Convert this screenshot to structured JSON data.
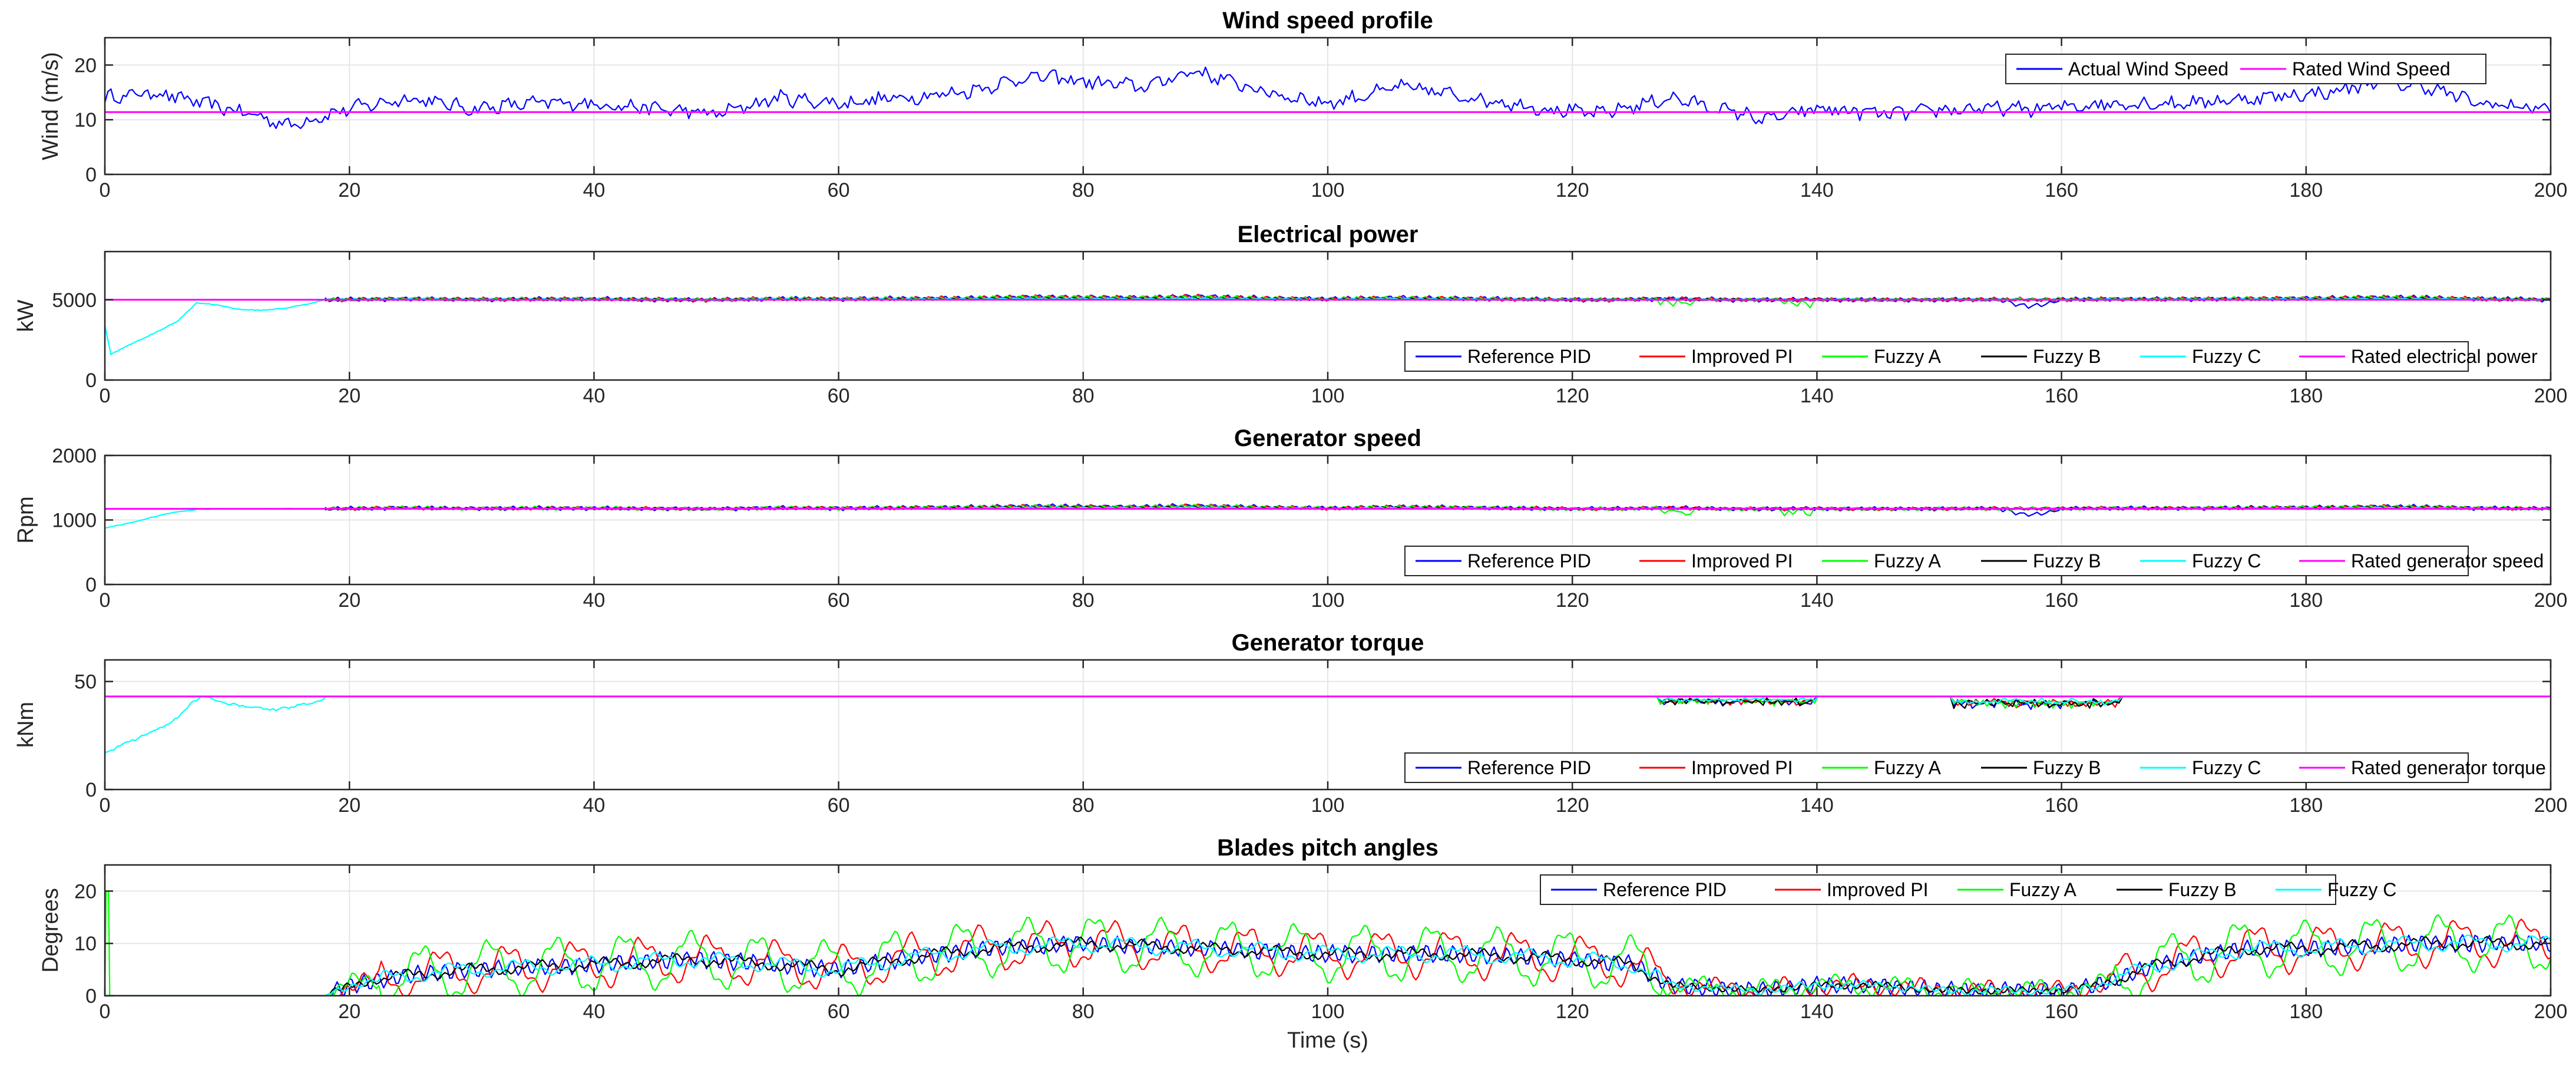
{
  "chart_data": [
    {
      "type": "line",
      "title": "Wind speed profile",
      "ylabel": "Wind (m/s)",
      "xlabel": "",
      "xlim": [
        0,
        200
      ],
      "ylim": [
        0,
        25
      ],
      "yticks": [
        0,
        10,
        20
      ],
      "legend_loc": "top-right",
      "series": [
        {
          "name": "Actual Wind Speed",
          "color": "#0000ff",
          "style": "wind",
          "x": [
            0,
            4,
            8,
            12,
            15,
            20,
            25,
            30,
            35,
            40,
            45,
            50,
            55,
            60,
            65,
            70,
            76,
            80,
            85,
            89,
            95,
            100,
            106,
            112,
            118,
            122,
            128,
            132,
            136,
            140,
            146,
            152,
            158,
            164,
            170,
            176,
            182,
            186,
            190,
            194,
            200
          ],
          "y": [
            14,
            15,
            13,
            11,
            9,
            12,
            14,
            12,
            13,
            13,
            12,
            11,
            14,
            13,
            14,
            15,
            18,
            17,
            16,
            19,
            15,
            13,
            16,
            14,
            12,
            11,
            14,
            12,
            10,
            12,
            11,
            12,
            12,
            13,
            13,
            14,
            15,
            17,
            16,
            13,
            12
          ]
        },
        {
          "name": "Rated Wind Speed",
          "color": "#ff00ff",
          "style": "const",
          "value": 11.4
        }
      ]
    },
    {
      "type": "line",
      "title": "Electrical power",
      "ylabel": "kW",
      "xlabel": "",
      "xlim": [
        0,
        200
      ],
      "ylim": [
        0,
        8000
      ],
      "yticks": [
        0,
        5000
      ],
      "legend_loc": "bottom-right",
      "startup": {
        "x": [
          0,
          0.5,
          2,
          4,
          6,
          7.5,
          9,
          11,
          13,
          15,
          17,
          18
        ],
        "y": [
          3400,
          1600,
          2200,
          2900,
          3700,
          4800,
          4700,
          4400,
          4350,
          4500,
          4800,
          5000
        ]
      },
      "series": [
        {
          "name": "Reference PID",
          "color": "#0000ff",
          "style": "osc",
          "gain": 0.12,
          "amp": 150
        },
        {
          "name": "Improved PI",
          "color": "#ff0000",
          "style": "osc",
          "gain": 0.11,
          "amp": 140
        },
        {
          "name": "Fuzzy A",
          "color": "#00ff00",
          "style": "osc",
          "gain": 0.1,
          "amp": 130
        },
        {
          "name": "Fuzzy B",
          "color": "#000000",
          "style": "osc",
          "gain": 0.06,
          "amp": 80
        },
        {
          "name": "Fuzzy C",
          "color": "#00ffff",
          "style": "osc",
          "gain": 0.05,
          "amp": 70
        },
        {
          "name": "Rated electrical power",
          "color": "#ff00ff",
          "style": "const",
          "value": 5000
        }
      ]
    },
    {
      "type": "line",
      "title": "Generator speed",
      "ylabel": "Rpm",
      "xlabel": "",
      "xlim": [
        0,
        200
      ],
      "ylim": [
        0,
        2000
      ],
      "yticks": [
        0,
        1000,
        2000
      ],
      "legend_loc": "bottom-right",
      "startup": {
        "x": [
          0,
          2,
          4,
          6,
          8,
          12,
          18
        ],
        "y": [
          880,
          950,
          1050,
          1130,
          1170,
          1173,
          1173
        ]
      },
      "series": [
        {
          "name": "Reference PID",
          "color": "#0000ff",
          "style": "osc",
          "gain": 0.12,
          "amp": 35
        },
        {
          "name": "Improved PI",
          "color": "#ff0000",
          "style": "osc",
          "gain": 0.11,
          "amp": 30
        },
        {
          "name": "Fuzzy A",
          "color": "#00ff00",
          "style": "osc",
          "gain": 0.1,
          "amp": 30
        },
        {
          "name": "Fuzzy B",
          "color": "#000000",
          "style": "osc",
          "gain": 0.06,
          "amp": 20
        },
        {
          "name": "Fuzzy C",
          "color": "#00ffff",
          "style": "osc",
          "gain": 0.05,
          "amp": 15
        },
        {
          "name": "Rated generator speed",
          "color": "#ff00ff",
          "style": "const",
          "value": 1173
        }
      ]
    },
    {
      "type": "line",
      "title": "Generator torque",
      "ylabel": "kNm",
      "xlabel": "",
      "xlim": [
        0,
        200
      ],
      "ylim": [
        0,
        60
      ],
      "yticks": [
        0,
        50
      ],
      "legend_loc": "bottom-right",
      "startup": {
        "x": [
          0,
          2,
          4,
          6,
          7,
          8,
          10,
          12,
          14,
          16,
          18
        ],
        "y": [
          17,
          22,
          27,
          33,
          40,
          43,
          40,
          38,
          37,
          39,
          42
        ]
      },
      "dips": [
        [
          127,
          140,
          3
        ],
        [
          151,
          165,
          4
        ]
      ],
      "series": [
        {
          "name": "Reference PID",
          "color": "#0000ff",
          "style": "torque"
        },
        {
          "name": "Improved PI",
          "color": "#ff0000",
          "style": "torque"
        },
        {
          "name": "Fuzzy A",
          "color": "#00ff00",
          "style": "torque"
        },
        {
          "name": "Fuzzy B",
          "color": "#000000",
          "style": "torque"
        },
        {
          "name": "Fuzzy C",
          "color": "#00ffff",
          "style": "torque"
        },
        {
          "name": "Rated generator torque",
          "color": "#ff00ff",
          "style": "const",
          "value": 43.1
        }
      ]
    },
    {
      "type": "line",
      "title": "Blades pitch angles",
      "ylabel": "Degrees",
      "xlabel": "Time (s)",
      "xlim": [
        0,
        200
      ],
      "ylim": [
        0,
        25
      ],
      "yticks": [
        0,
        10,
        20
      ],
      "legend_loc": "top-right",
      "base": {
        "x": [
          0,
          18,
          20,
          25,
          30,
          40,
          48,
          55,
          60,
          65,
          72,
          80,
          90,
          100,
          110,
          120,
          125,
          128,
          135,
          140,
          145,
          150,
          160,
          163,
          168,
          175,
          180,
          190,
          200
        ],
        "y": [
          0,
          0,
          2,
          4,
          5,
          6,
          7,
          6,
          5,
          7,
          9,
          10,
          9,
          8,
          8,
          7,
          6,
          2,
          1,
          2,
          2,
          1,
          1,
          2,
          6,
          9,
          9,
          10,
          10
        ]
      },
      "series": [
        {
          "name": "Reference PID",
          "color": "#0000ff",
          "style": "pitch",
          "amp": 1.8,
          "period": 1.1,
          "extra": 0.0
        },
        {
          "name": "Improved PI",
          "color": "#ff0000",
          "style": "pitch",
          "amp": 1.2,
          "period": 1.4,
          "extra": 3.8
        },
        {
          "name": "Fuzzy A",
          "color": "#00ff00",
          "style": "pitch",
          "amp": 1.0,
          "period": 1.2,
          "extra": 4.8
        },
        {
          "name": "Fuzzy B",
          "color": "#000000",
          "style": "pitch",
          "amp": 0.6,
          "period": 1.0,
          "extra": 0.8
        },
        {
          "name": "Fuzzy C",
          "color": "#00ffff",
          "style": "pitch",
          "amp": 0.6,
          "period": 1.3,
          "extra": 1.2
        }
      ]
    }
  ]
}
